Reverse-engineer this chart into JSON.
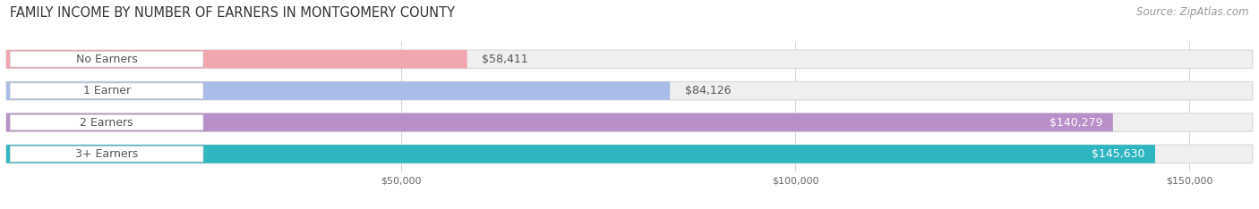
{
  "title": "FAMILY INCOME BY NUMBER OF EARNERS IN MONTGOMERY COUNTY",
  "source": "Source: ZipAtlas.com",
  "categories": [
    "No Earners",
    "1 Earner",
    "2 Earners",
    "3+ Earners"
  ],
  "values": [
    58411,
    84126,
    140279,
    145630
  ],
  "bar_colors": [
    "#f2a7b0",
    "#aabde8",
    "#b88fc8",
    "#2db5c0"
  ],
  "x_ticks": [
    50000,
    100000,
    150000
  ],
  "x_tick_labels": [
    "$50,000",
    "$100,000",
    "$150,000"
  ],
  "xmin": 0,
  "xmax": 158000,
  "background_color": "#ffffff",
  "bar_bg_color": "#efefef",
  "bar_bg_edge_color": "#d8d8d8",
  "title_fontsize": 10.5,
  "source_fontsize": 8.5,
  "bar_label_fontsize": 9,
  "value_fontsize": 9,
  "label_pill_color": "#ffffff",
  "label_text_color": "#555555",
  "value_inside_color": "#ffffff",
  "value_outside_color": "#555555",
  "inside_threshold": 120000
}
